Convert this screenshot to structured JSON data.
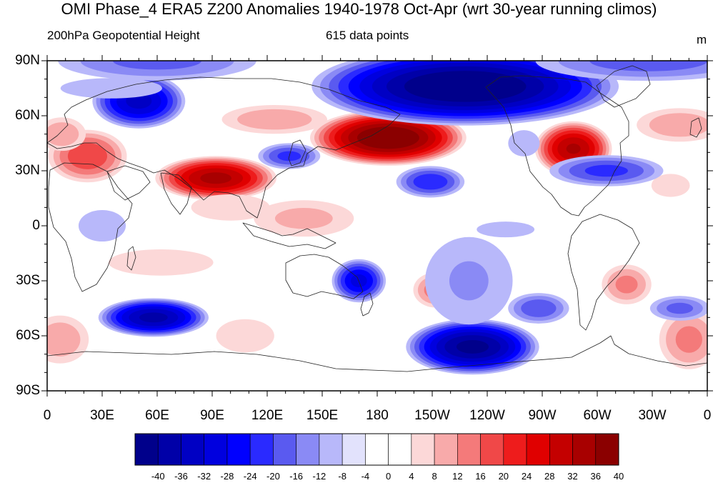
{
  "title": "OMI Phase_4 ERA5 Z200 Anomalies 1940-1978 Oct-Apr (wrt 30-year running climos)",
  "left_subtitle": "200hPa Geopotential Height",
  "center_subtitle": "615 data points",
  "units": "m",
  "lat_labels": [
    "90N",
    "60N",
    "30N",
    "0",
    "30S",
    "60S",
    "90S"
  ],
  "lon_labels": [
    "0",
    "30E",
    "60E",
    "90E",
    "120E",
    "150E",
    "180",
    "150W",
    "120W",
    "90W",
    "60W",
    "30W",
    "0"
  ],
  "colorbar": {
    "labels": [
      "-40",
      "-36",
      "-32",
      "-28",
      "-24",
      "-20",
      "-16",
      "-12",
      "-8",
      "-4",
      "0",
      "4",
      "8",
      "12",
      "16",
      "20",
      "24",
      "28",
      "32",
      "36",
      "40"
    ],
    "colors": [
      "#00008b",
      "#0000a8",
      "#0000c4",
      "#0000df",
      "#0000ff",
      "#2a2aff",
      "#5a5af0",
      "#8a8af5",
      "#b8b8fa",
      "#e2e2fc",
      "#ffffff",
      "#ffffff",
      "#fcd8d8",
      "#f8aaaa",
      "#f47a7a",
      "#f04848",
      "#ee1c1c",
      "#e00000",
      "#c40000",
      "#a80000",
      "#8b0000"
    ]
  },
  "map": {
    "lon_range": [
      0,
      360
    ],
    "lat_range": [
      -90,
      90
    ],
    "anomalies": [
      {
        "lon": 186,
        "lat": 48,
        "rlon": 28,
        "rlat": 10,
        "value": 42
      },
      {
        "lon": 92,
        "lat": 26,
        "rlon": 22,
        "rlat": 8,
        "value": 34
      },
      {
        "lon": 287,
        "lat": 42,
        "rlon": 14,
        "rlat": 10,
        "value": 33
      },
      {
        "lon": 22,
        "lat": 38,
        "rlon": 15,
        "rlat": 10,
        "value": 20
      },
      {
        "lon": 8,
        "lat": 50,
        "rlon": 10,
        "rlat": 7,
        "value": 12
      },
      {
        "lon": 124,
        "lat": 58,
        "rlon": 22,
        "rlat": 6,
        "value": 12
      },
      {
        "lon": 345,
        "lat": 55,
        "rlon": 18,
        "rlat": 7,
        "value": 12
      },
      {
        "lon": 140,
        "lat": 4,
        "rlon": 22,
        "rlat": 8,
        "value": 10
      },
      {
        "lon": 62,
        "lat": -20,
        "rlon": 40,
        "rlat": 10,
        "value": 5
      },
      {
        "lon": 100,
        "lat": 10,
        "rlon": 30,
        "rlat": 10,
        "value": 5
      },
      {
        "lon": 212,
        "lat": -35,
        "rlon": 9,
        "rlat": 7,
        "value": 15
      },
      {
        "lon": 316,
        "lat": -32,
        "rlon": 10,
        "rlat": 8,
        "value": 14
      },
      {
        "lon": 350,
        "lat": -62,
        "rlon": 12,
        "rlat": 12,
        "value": 14
      },
      {
        "lon": 7,
        "lat": -62,
        "rlon": 12,
        "rlat": 10,
        "value": 12
      },
      {
        "lon": 108,
        "lat": -60,
        "rlon": 14,
        "rlat": 8,
        "value": 8
      },
      {
        "lon": 340,
        "lat": 22,
        "rlon": 10,
        "rlat": 6,
        "value": 7
      },
      {
        "lon": 228,
        "lat": 76,
        "rlon": 55,
        "rlat": 14,
        "value": -42
      },
      {
        "lon": 50,
        "lat": 68,
        "rlon": 17,
        "rlat": 10,
        "value": -30
      },
      {
        "lon": 232,
        "lat": -66,
        "rlon": 24,
        "rlat": 10,
        "value": -38
      },
      {
        "lon": 58,
        "lat": -50,
        "rlon": 20,
        "rlat": 7,
        "value": -34
      },
      {
        "lon": 170,
        "lat": -30,
        "rlon": 10,
        "rlat": 8,
        "value": -26
      },
      {
        "lon": 209,
        "lat": 24,
        "rlon": 13,
        "rlat": 6,
        "value": -20
      },
      {
        "lon": 132,
        "lat": 38,
        "rlon": 12,
        "rlat": 5,
        "value": -18
      },
      {
        "lon": 305,
        "lat": 30,
        "rlon": 22,
        "rlat": 6,
        "value": -18
      },
      {
        "lon": 268,
        "lat": -45,
        "rlon": 12,
        "rlat": 6,
        "value": -16
      },
      {
        "lon": 328,
        "lat": 90,
        "rlon": 45,
        "rlat": 8,
        "value": -15
      },
      {
        "lon": 60,
        "lat": 90,
        "rlon": 40,
        "rlat": 8,
        "value": -14
      },
      {
        "lon": 345,
        "lat": -45,
        "rlon": 12,
        "rlat": 5,
        "value": -14
      },
      {
        "lon": 230,
        "lat": -30,
        "rlon": 20,
        "rlat": 20,
        "value": -9
      },
      {
        "lon": 30,
        "lat": 0,
        "rlon": 18,
        "rlat": 12,
        "value": -5
      },
      {
        "lon": 250,
        "lat": -2,
        "rlon": 22,
        "rlat": 6,
        "value": -5
      },
      {
        "lon": 260,
        "lat": 45,
        "rlon": 12,
        "rlat": 10,
        "value": -5
      },
      {
        "lon": 35,
        "lat": 75,
        "rlon": 30,
        "rlat": 6,
        "value": -6
      }
    ]
  }
}
